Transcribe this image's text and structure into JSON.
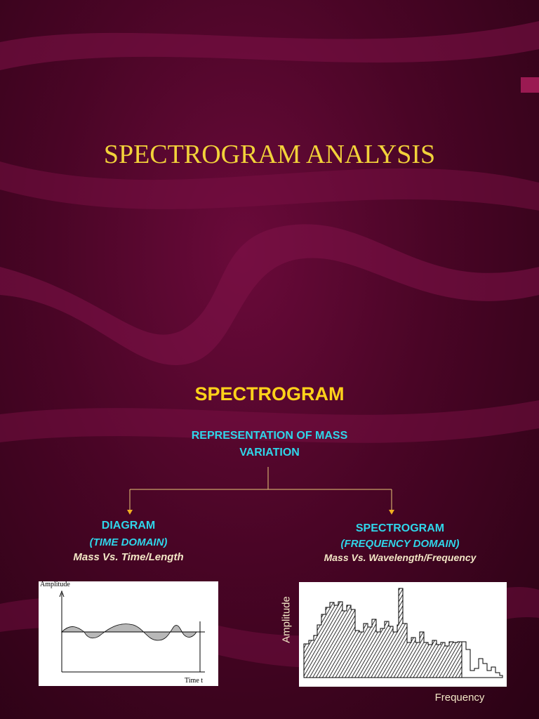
{
  "header": {
    "title": "SPECTROGRAM ANALYSIS",
    "subtitle": "SPECTROGRAM"
  },
  "description": [
    "REPRESENTATION OF MASS",
    "VARIATION"
  ],
  "branches": [
    {
      "heading": "DIAGRAM",
      "domain": "(TIME DOMAIN)",
      "caption": "Mass Vs. Time/Length",
      "y_axis": "Amplitude",
      "x_axis": "Time  t"
    },
    {
      "heading": "SPECTROGRAM",
      "domain": "(FREQUENCY DOMAIN)",
      "caption": "Mass Vs. Wavelength/Frequency",
      "y_axis": "Amplitude",
      "x_axis": "Frequency"
    }
  ]
}
